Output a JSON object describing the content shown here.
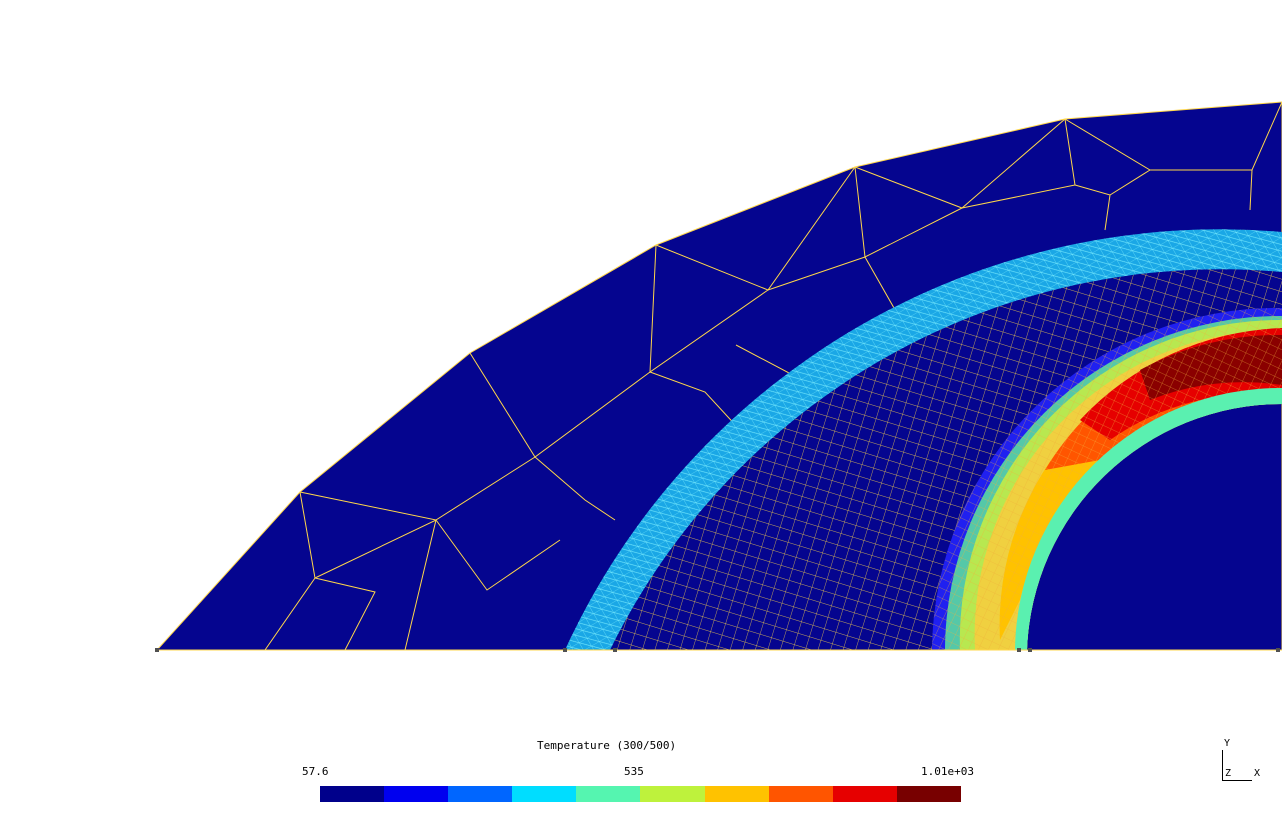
{
  "plot": {
    "background_color": "#ffffff",
    "mesh_line_color": "#ffd74a",
    "fine_mesh_line_color": "#40e0ff"
  },
  "colorbar": {
    "title": "Temperature (300/500)",
    "min_label": "57.6",
    "mid_label": "535",
    "max_label": "1.01e+03",
    "colors": [
      "#00008b",
      "#0000ef",
      "#0066ff",
      "#00ddff",
      "#55f5b0",
      "#bef23c",
      "#ffc200",
      "#ff5500",
      "#e60000",
      "#780000"
    ]
  },
  "axes_triad": {
    "y_label": "Y",
    "z_label": "Z",
    "x_label": "X"
  }
}
